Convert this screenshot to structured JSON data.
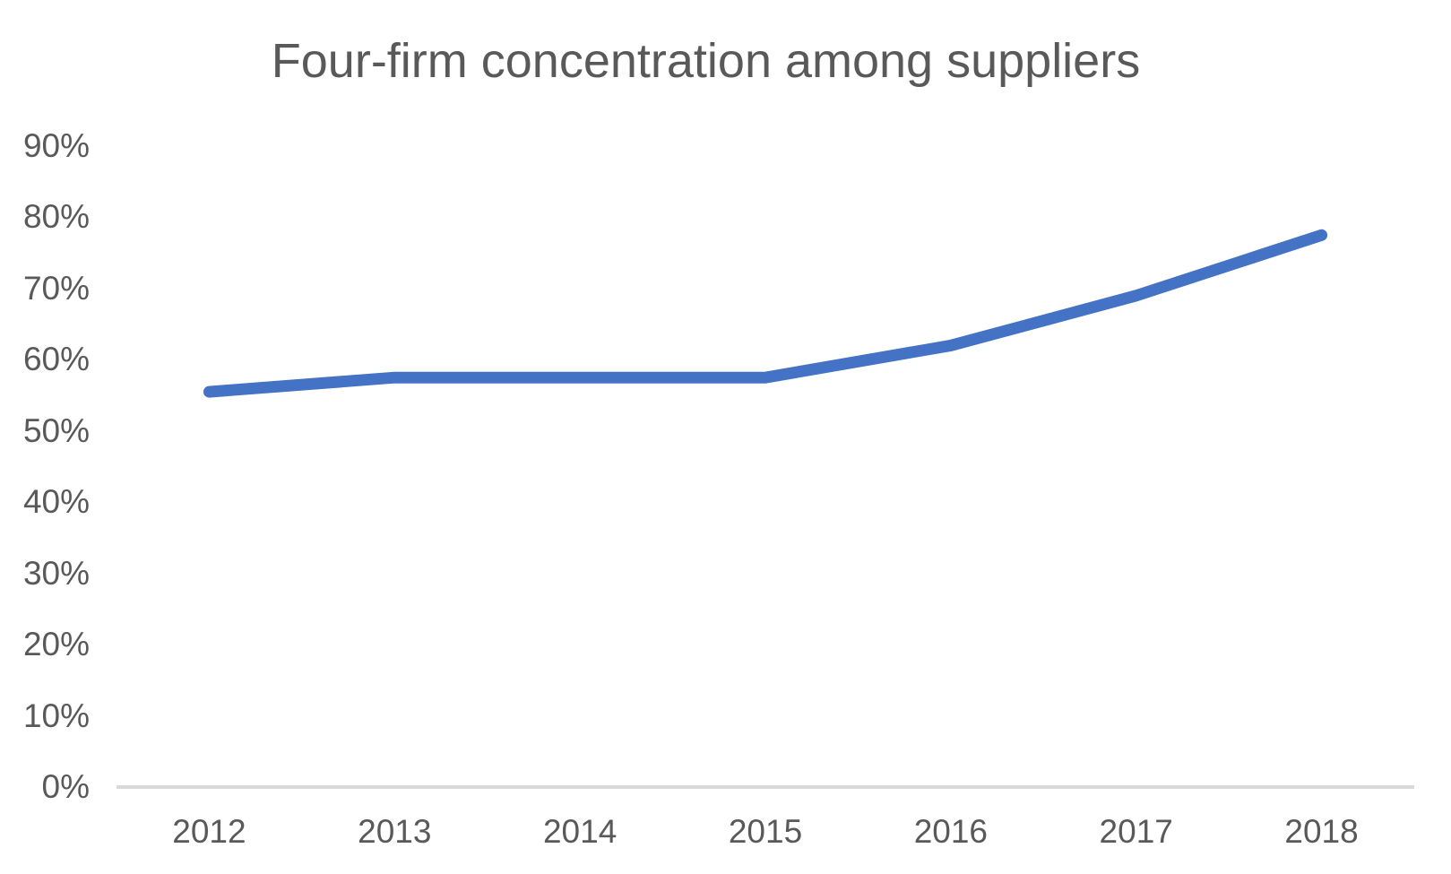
{
  "chart_data": {
    "type": "line",
    "title": "Four-firm concentration among suppliers",
    "categories": [
      "2012",
      "2013",
      "2014",
      "2015",
      "2016",
      "2017",
      "2018"
    ],
    "values": [
      55.5,
      57.5,
      57.5,
      57.5,
      62,
      69,
      77.5
    ],
    "y_tick_labels": [
      "0%",
      "10%",
      "20%",
      "30%",
      "40%",
      "50%",
      "60%",
      "70%",
      "80%",
      "90%"
    ],
    "ylim": [
      0,
      90
    ],
    "y_tick_step": 10,
    "xlabel": "",
    "ylabel": "",
    "grid": false,
    "legend": "none",
    "colors": {
      "line": "#4472C4",
      "axis_line": "#D9D9D9",
      "text": "#595959",
      "background": "#FFFFFF"
    }
  }
}
